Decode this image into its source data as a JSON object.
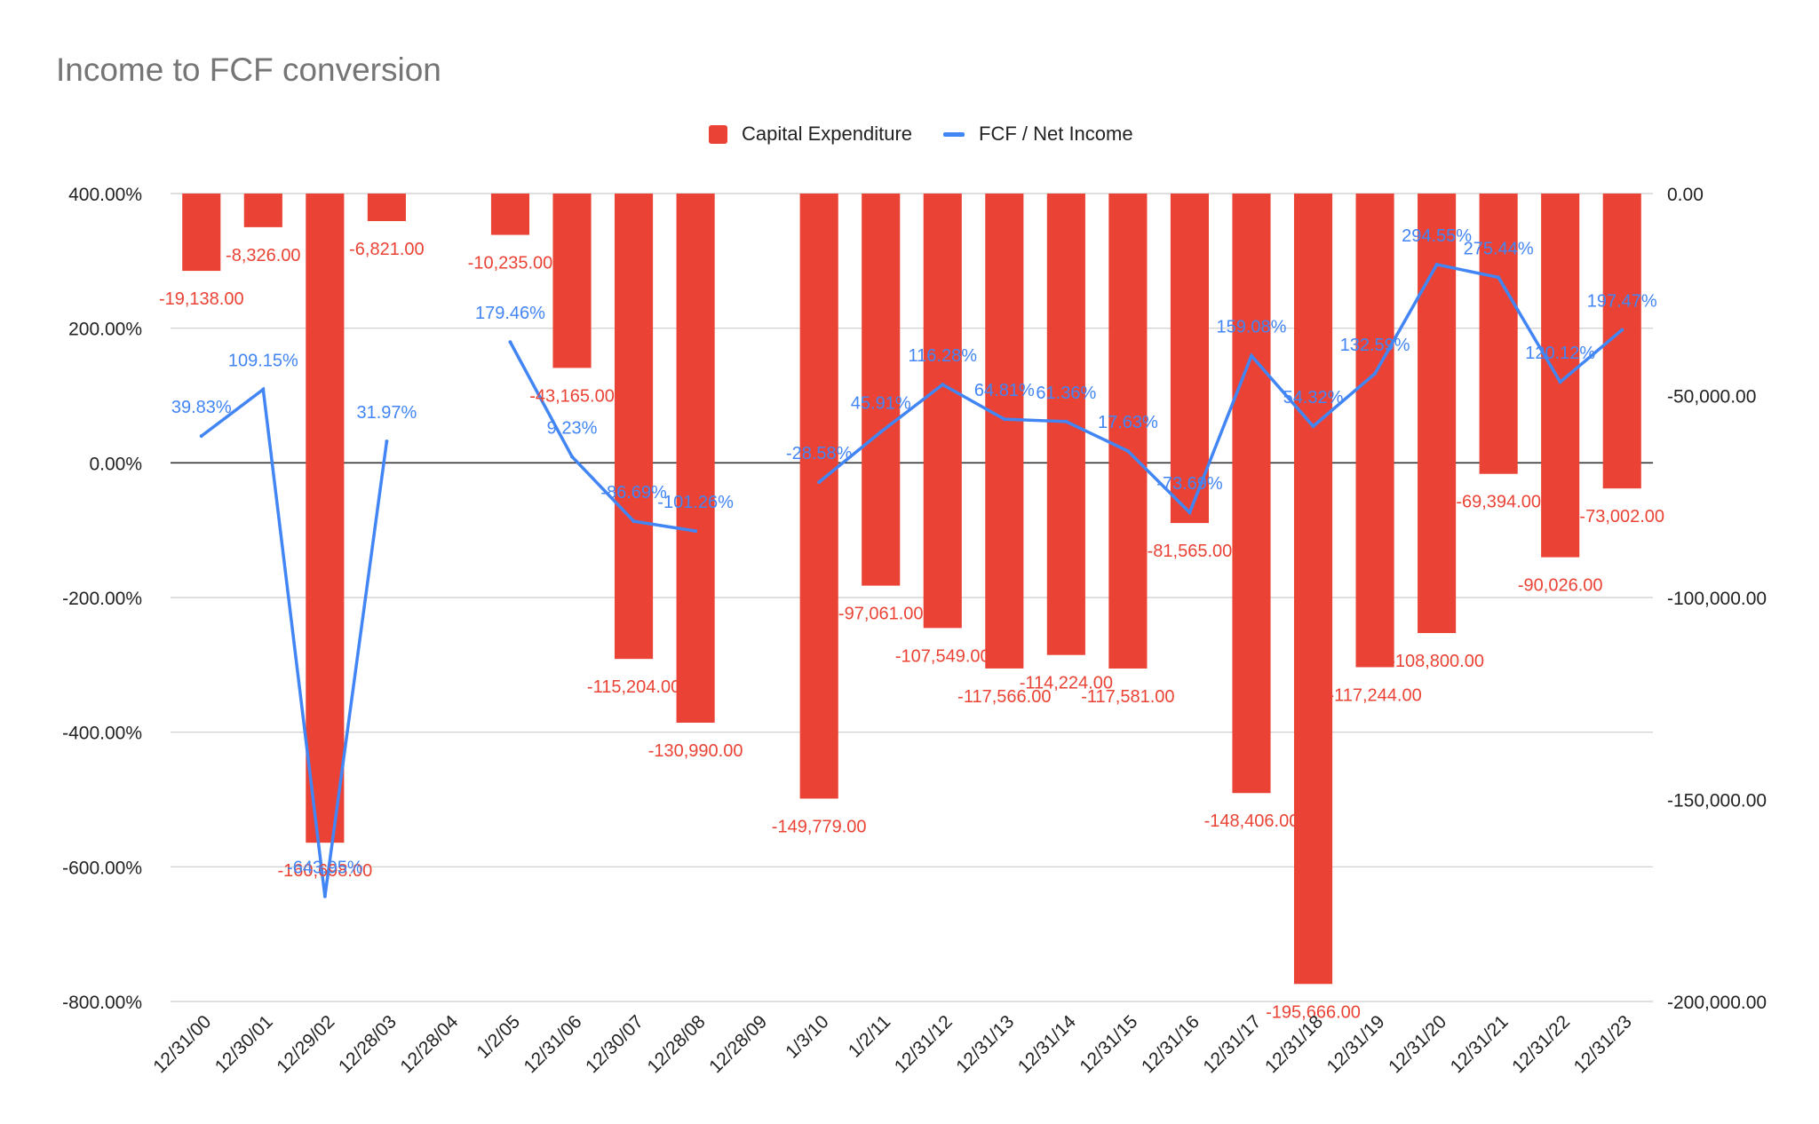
{
  "chart_data": {
    "type": "bar",
    "title": "Income to FCF conversion",
    "colors": {
      "bar": "#ea4335",
      "line": "#4285f4",
      "grid": "#cccccc",
      "zero": "#333333",
      "title": "#757575"
    },
    "categories": [
      "12/31/00",
      "12/30/01",
      "12/29/02",
      "12/28/03",
      "12/28/04",
      "1/2/05",
      "12/31/06",
      "12/30/07",
      "12/28/08",
      "12/28/09",
      "1/3/10",
      "1/2/11",
      "12/31/12",
      "12/31/13",
      "12/31/14",
      "12/31/15",
      "12/31/16",
      "12/31/17",
      "12/31/18",
      "12/31/19",
      "12/31/20",
      "12/31/21",
      "12/31/22",
      "12/31/23"
    ],
    "series": [
      {
        "name": "Capital Expenditure",
        "type": "bar",
        "axis": "right",
        "values": [
          -19138,
          -8326,
          -160698,
          -6821,
          null,
          -10235,
          -43165,
          -115204,
          -130990,
          null,
          -149779,
          -97061,
          -107549,
          -117566,
          -114224,
          -117581,
          -81565,
          -148406,
          -195666,
          -117244,
          -108800,
          -69394,
          -90026,
          -73002
        ],
        "labels": [
          "-19,138.00",
          "-8,326.00",
          "-160,698.00",
          "-6,821.00",
          "",
          "-10,235.00",
          "-43,165.00",
          "-115,204.00",
          "-130,990.00",
          "",
          "-149,779.00",
          "-97,061.00",
          "-107,549.00",
          "-117,566.00",
          "-114,224.00",
          "-117,581.00",
          "-81,565.00",
          "-148,406.00",
          "-195,666.00",
          "-117,244.00",
          "-108,800.00",
          "-69,394.00",
          "-90,026.00",
          "-73,002.00"
        ]
      },
      {
        "name": "FCF / Net Income",
        "type": "line",
        "axis": "left",
        "values": [
          39.83,
          109.15,
          -643.95,
          31.97,
          null,
          179.46,
          9.23,
          -86.69,
          -101.26,
          null,
          -28.58,
          45.91,
          116.28,
          64.81,
          61.36,
          17.63,
          -73.69,
          159.08,
          54.32,
          132.59,
          294.55,
          275.44,
          120.12,
          197.47
        ],
        "labels": [
          "39.83%",
          "109.15%",
          "-643.95%",
          "31.97%",
          "",
          "179.46%",
          "9.23%",
          "-86.69%",
          "-101.26%",
          "",
          "-28.58%",
          "45.91%",
          "116.28%",
          "64.81%",
          "61.36%",
          "17.63%",
          "-73.69%",
          "159.08%",
          "54.32%",
          "132.59%",
          "294.55%",
          "275.44%",
          "120.12%",
          "197.47%"
        ]
      }
    ],
    "y_left": {
      "lim": [
        -800,
        400
      ],
      "ticks": [
        400,
        200,
        0,
        -200,
        -400,
        -600,
        -800
      ],
      "tick_labels": [
        "400.00%",
        "200.00%",
        "0.00%",
        "-200.00%",
        "-400.00%",
        "-600.00%",
        "-800.00%"
      ]
    },
    "y_right": {
      "lim": [
        -200000,
        0
      ],
      "ticks": [
        0,
        -50000,
        -100000,
        -150000,
        -200000
      ],
      "tick_labels": [
        "0.00",
        "-50,000.00",
        "-100,000.00",
        "-150,000.00",
        "-200,000.00"
      ]
    },
    "legend": {
      "position": "top",
      "entries": [
        "Capital Expenditure",
        "FCF / Net Income"
      ]
    },
    "grid": true
  }
}
